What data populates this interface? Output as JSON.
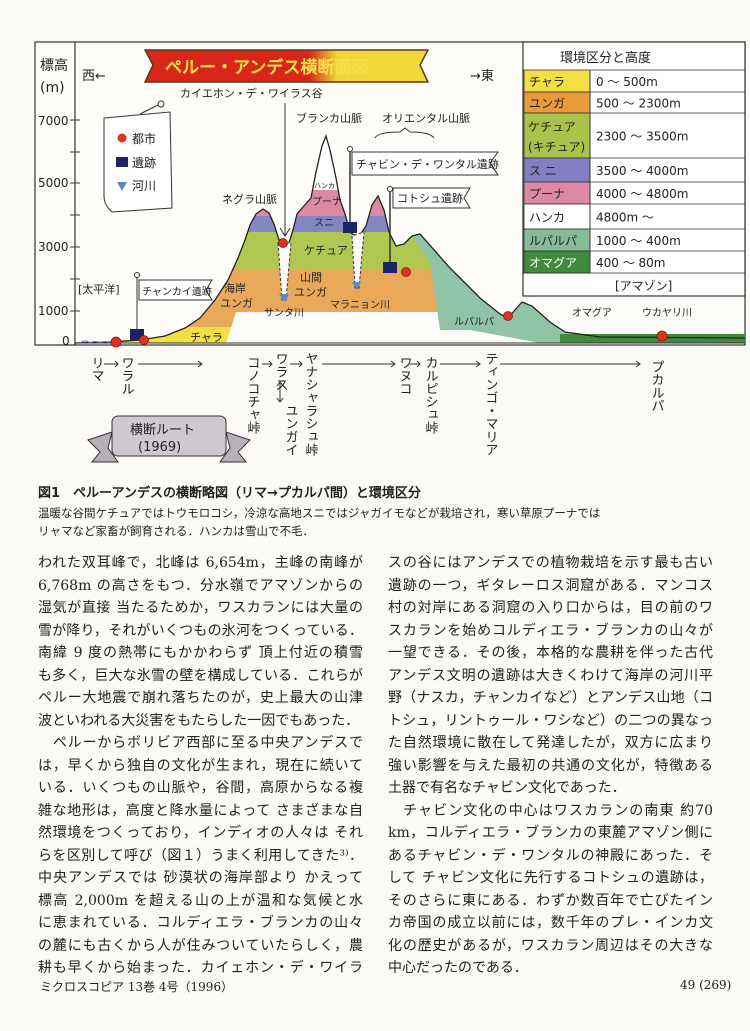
{
  "figure": {
    "title": "ペルー・アンデス横断面図",
    "y_axis_label": "標高",
    "y_axis_unit": "(m)",
    "y_ticks": [
      "7000",
      "5000",
      "3000",
      "1000",
      "0"
    ],
    "west_label": "西←",
    "east_label": "→東",
    "valley_label": "カイエホン・デ・ワイラス谷",
    "blanca_label": "ブランカ山脈",
    "oriental_label": "オリエンタル山脈",
    "negra_label": "ネグラ山脈",
    "pacific_label": "[太平洋]",
    "legend": [
      {
        "label": "都市",
        "icon": "city-dot",
        "color": "#e0321e"
      },
      {
        "label": "遺跡",
        "icon": "ruin-square",
        "color": "#1c2466"
      },
      {
        "label": "河川",
        "icon": "river-triangle",
        "color": "#5b86c8"
      }
    ],
    "flags": {
      "chancay": "チャンカイ遺跡",
      "chavin": "チャビン・デ・ワンタル遺跡",
      "kotosh": "コトシュ遺跡"
    },
    "zone_labels": {
      "hanka": "ハンカ",
      "puna": "プーナ",
      "suni": "スニ",
      "quechua": "ケチュア",
      "yunga_valley_1": "山間",
      "yunga_valley_2": "ユンガ",
      "yunga_coast_1": "海岸",
      "yunga_coast_2": "ユンガ",
      "chala": "チャラ",
      "rupa": "ルパルパ",
      "omagua": "オマグア"
    },
    "rivers": {
      "santa": "サンタ川",
      "maranon": "マラニョン川",
      "ucayali": "ウカヤリ川"
    },
    "table": {
      "header": "環境区分と高度",
      "rows": [
        {
          "zone": "チャラ",
          "range": "0 ～ 500m",
          "color": "#f1df45"
        },
        {
          "zone": "ユンガ",
          "range": "500 ～ 2300m",
          "color": "#e99a3c"
        },
        {
          "zone": "ケチュア\n(キチュア)",
          "range": "2300 ～ 3500m",
          "color": "#a9c24a"
        },
        {
          "zone": "ス ニ",
          "range": "3500 ～ 4000m",
          "color": "#7f7fc2"
        },
        {
          "zone": "プーナ",
          "range": "4000 ～ 4800m",
          "color": "#dc88a6"
        },
        {
          "zone": "ハンカ",
          "range": "4800m ～",
          "color": "#ffffff"
        },
        {
          "zone": "ルパルパ",
          "range": "1000 ～ 400m",
          "color": "#86bb9a"
        },
        {
          "zone": "オマグア",
          "range": "400 ～ 80m",
          "color": "#3f8a3c"
        }
      ],
      "footer": "[アマゾン]"
    },
    "route": {
      "stations": [
        "リマ",
        "ワラル",
        "コノコチャ峠",
        "ワラス",
        "ユンガイ",
        "ヤナシャラシュ峠",
        "ワヌコ",
        "カルピシュ峠",
        "ティンゴ・マリア",
        "プカルパ"
      ],
      "banner_line1": "横断ルート",
      "banner_line2": "(1969)"
    }
  },
  "caption": {
    "title": "図1　ペルーアンデスの横断略図（リマ→プカルパ間）と環境区分",
    "lines": [
      "温暖な谷間ケチュアではトウモロコシ，冷涼な高地スニではジャガイモなどが栽培され，寒い草原プーナでは",
      "リャマなど家畜が飼育される．ハンカは雪山で不毛．"
    ]
  },
  "body": {
    "left": [
      {
        "t": "われた双耳峰で，北峰は 6,654m，主峰の南峰が"
      },
      {
        "t": "6,768m の高さをもつ．分水嶺でアマゾンからの"
      },
      {
        "t": "湿気が直接 当たるためか，ワスカランには大量の"
      },
      {
        "t": "雪が降り，それがいくつもの氷河をつくっている．"
      },
      {
        "t": "南緯 9 度の熱帯にもかかわらず 頂上付近の積雪"
      },
      {
        "t": "も多く，巨大な氷雪の壁を構成している．これらが"
      },
      {
        "t": "ペルー大地震で崩れ落ちたのが，史上最大の山津"
      },
      {
        "t": "波といわれる大災害をもたらした一因でもあった．",
        "end": true
      },
      {
        "t": "　ペルーからボリビア西部に至る中央アンデスで"
      },
      {
        "t": "は，早くから独自の文化が生まれ，現在に続いて"
      },
      {
        "t": "いる．いくつもの山脈や，谷間，高原からなる複"
      },
      {
        "t": "雑な地形は，高度と降水量によって さまざまな自"
      },
      {
        "t": "然環境をつくっており，インディオの人々は それ"
      },
      {
        "t": "らを区別して呼び（図１）うまく利用してきた³⁾．"
      },
      {
        "t": "中央アンデスでは 砂漠状の海岸部より かえって"
      },
      {
        "t": "標高 2,000m を超える山の上が温和な気候と水"
      },
      {
        "t": "に恵まれている．コルディエラ・ブランカの山々"
      },
      {
        "t": "の麓にも古くから人が住みついていたらしく，農"
      },
      {
        "t": "耕も早くから始まった．カイェホン・デ・ワイラ"
      }
    ],
    "right": [
      {
        "t": "スの谷にはアンデスでの植物栽培を示す最も古い"
      },
      {
        "t": "遺跡の一つ，ギタレーロス洞窟がある．マンコス"
      },
      {
        "t": "村の対岸にある洞窟の入り口からは，目の前のワ"
      },
      {
        "t": "スカランを始めコルディエラ・ブランカの山々が"
      },
      {
        "t": "一望できる．その後，本格的な農耕を伴った古代"
      },
      {
        "t": "アンデス文明の遺跡は大きくわけて海岸の河川平"
      },
      {
        "t": "野（ナスカ，チャンカイなど）とアンデス山地（コ"
      },
      {
        "t": "トシュ，リントゥール・ワシなど）の二つの異なっ"
      },
      {
        "t": "た自然環境に散在して発達したが，双方に広まり"
      },
      {
        "t": "強い影響を与えた最初の共通の文化が，特徴ある"
      },
      {
        "t": "土器で有名なチャビン文化であった．",
        "end": true
      },
      {
        "t": "　チャビン文化の中心はワスカランの南東 約70"
      },
      {
        "t": "km，コルディエラ・ブランカの東麓アマゾン側に"
      },
      {
        "t": "あるチャビン・デ・ワンタルの神殿にあった．そ"
      },
      {
        "t": "して チャビン文化に先行するコトシュの遺跡は，"
      },
      {
        "t": "そのさらに東にある．わずか数百年で亡びたイン"
      },
      {
        "t": "カ帝国の成立以前には，数千年のプレ・インカ文"
      },
      {
        "t": "化の歴史があるが，ワスカラン周辺はその大きな"
      },
      {
        "t": "中心だったのである．",
        "end": true
      }
    ]
  },
  "footer": {
    "journal": "ミクロスコピア 13巻 4号（1996）",
    "page": "49 (269)"
  }
}
